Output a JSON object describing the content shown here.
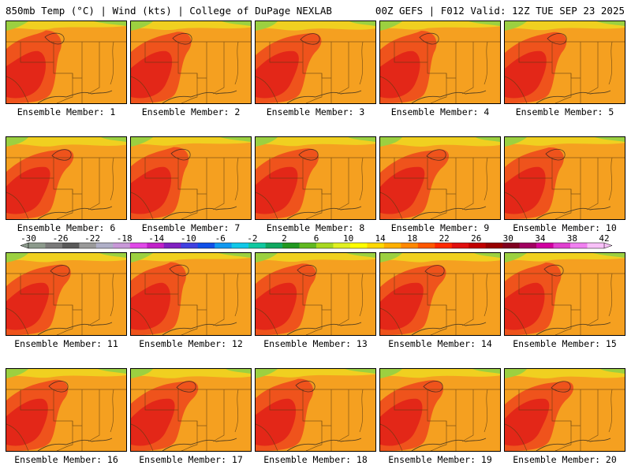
{
  "header": {
    "left": "850mb Temp (°C) | Wind (kts) | College of DuPage NEXLAB",
    "right": "00Z GEFS | F012 Valid: 12Z TUE SEP 23 2025"
  },
  "members": [
    "Ensemble Member: 1",
    "Ensemble Member: 2",
    "Ensemble Member: 3",
    "Ensemble Member: 4",
    "Ensemble Member: 5",
    "Ensemble Member: 6",
    "Ensemble Member: 7",
    "Ensemble Member: 8",
    "Ensemble Member: 9",
    "Ensemble Member: 10",
    "Ensemble Member: 11",
    "Ensemble Member: 12",
    "Ensemble Member: 13",
    "Ensemble Member: 14",
    "Ensemble Member: 15",
    "Ensemble Member: 16",
    "Ensemble Member: 17",
    "Ensemble Member: 18",
    "Ensemble Member: 19",
    "Ensemble Member: 20"
  ],
  "colorbar": {
    "labels": [
      "-30",
      "-26",
      "-22",
      "-18",
      "-14",
      "-10",
      "-6",
      "-2",
      "2",
      "6",
      "10",
      "14",
      "18",
      "22",
      "26",
      "30",
      "34",
      "38",
      "42"
    ],
    "colors": [
      "#8c9a8c",
      "#7a7a7a",
      "#5a5a5a",
      "#9a9a9a",
      "#b0b0c8",
      "#c898d8",
      "#e048e8",
      "#c020c8",
      "#8020c0",
      "#4040e0",
      "#1050e8",
      "#1098f0",
      "#10c8e8",
      "#10c8a0",
      "#10a860",
      "#209820",
      "#60b820",
      "#a8d820",
      "#e0f020",
      "#ffff00",
      "#ffd800",
      "#ffb000",
      "#ff8800",
      "#ff5800",
      "#ff2800",
      "#e01010",
      "#c00000",
      "#980000",
      "#800020",
      "#a00060",
      "#d000a0",
      "#e040d0",
      "#f080f0",
      "#f8c0f8"
    ]
  },
  "map_colors": {
    "warm": "#f5a020",
    "hot": "#ee4a1c",
    "hotter": "#e02018",
    "cool": "#f0d020",
    "cold": "#9cd040"
  }
}
